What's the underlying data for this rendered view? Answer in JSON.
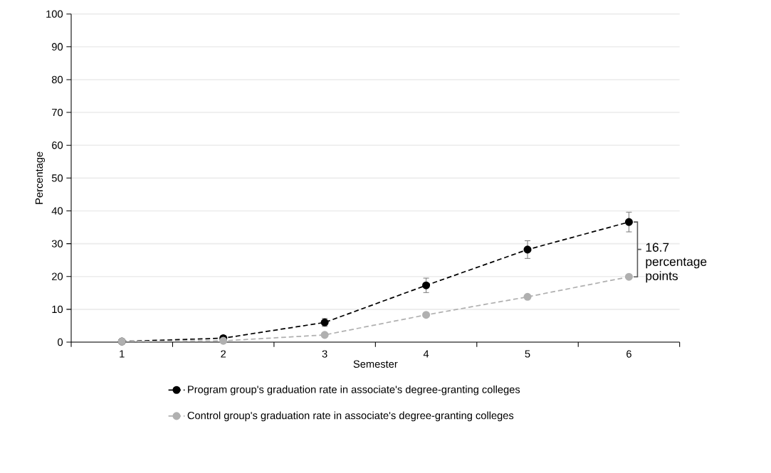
{
  "chart_data": {
    "type": "line",
    "xlabel": "Semester",
    "ylabel": "Percentage",
    "categories": [
      "1",
      "2",
      "3",
      "4",
      "5",
      "6"
    ],
    "series": [
      {
        "name": "Program group's graduation rate in associate's degree-granting colleges",
        "color": "#000000",
        "values": [
          0.2,
          1.2,
          6.0,
          17.3,
          28.2,
          36.6
        ],
        "errors": [
          null,
          null,
          1.2,
          2.2,
          2.7,
          3.0
        ]
      },
      {
        "name": "Control group's graduation rate in associate's degree-granting colleges",
        "color": "#b0b0b0",
        "values": [
          0.2,
          0.4,
          2.2,
          8.3,
          13.8,
          19.9
        ]
      }
    ],
    "ylim": [
      0,
      100
    ],
    "yticks": [
      0,
      10,
      20,
      30,
      40,
      50,
      60,
      70,
      80,
      90,
      100
    ],
    "grid": "y",
    "legend": "bottom",
    "marker": "circle",
    "line_style": "dashed",
    "annotations": [
      {
        "text": "16.7 percentage points",
        "x": "6",
        "y": 36.6
      }
    ]
  }
}
